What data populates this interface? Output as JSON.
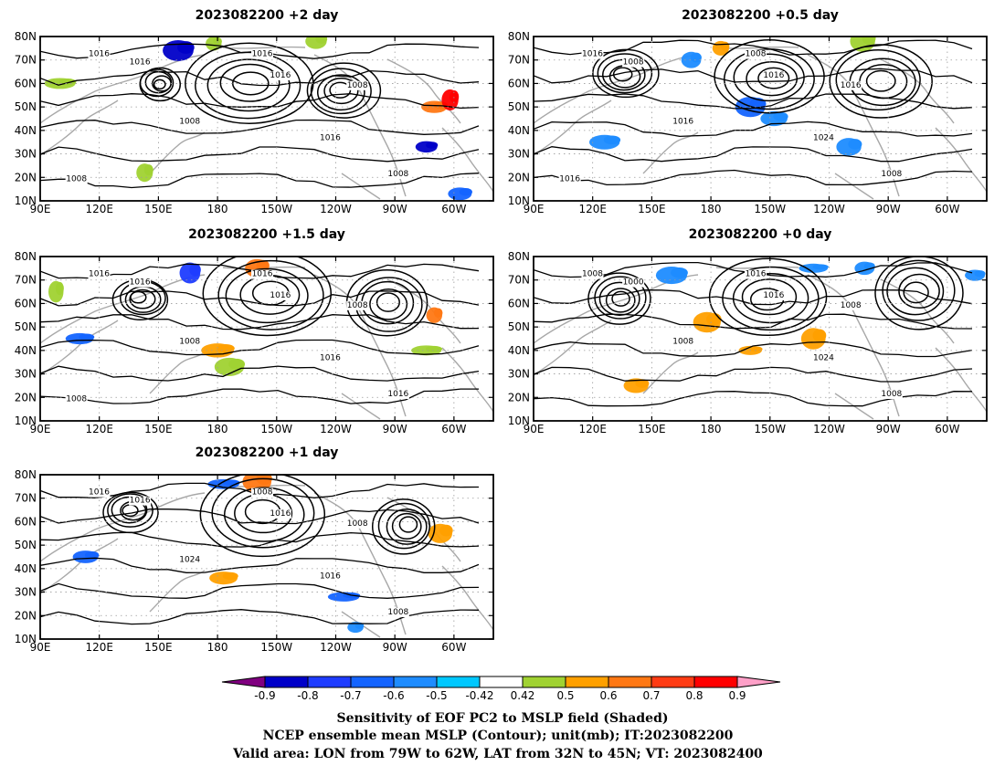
{
  "panels": [
    {
      "id": "p2",
      "title": "2023082200 +2 day",
      "contour_labels": [
        "1016",
        "1016",
        "1016",
        "1016",
        "1008",
        "1008",
        "1016",
        "1008",
        "1008"
      ],
      "shading": [
        {
          "lon": 160,
          "lat": 74,
          "value": -0.8
        },
        {
          "lon": 178,
          "lat": 77,
          "value": 0.5
        },
        {
          "lon": 100,
          "lat": 60,
          "value": 0.5
        },
        {
          "lon": 230,
          "lat": 78,
          "value": 0.5
        },
        {
          "lon": 290,
          "lat": 50,
          "value": 0.7
        },
        {
          "lon": 298,
          "lat": 53,
          "value": 0.9
        },
        {
          "lon": 286,
          "lat": 33,
          "value": -0.8
        },
        {
          "lon": 303,
          "lat": 13,
          "value": -0.6
        },
        {
          "lon": 143,
          "lat": 22,
          "value": 0.5
        }
      ]
    },
    {
      "id": "p05",
      "title": "2023082200 +0.5 day",
      "contour_labels": [
        "1016",
        "1008",
        "1008",
        "1016",
        "1016",
        "1016",
        "1024",
        "1008",
        "1016"
      ],
      "shading": [
        {
          "lon": 185,
          "lat": 75,
          "value": 0.6
        },
        {
          "lon": 170,
          "lat": 70,
          "value": -0.5
        },
        {
          "lon": 126,
          "lat": 35,
          "value": -0.5
        },
        {
          "lon": 212,
          "lat": 45,
          "value": -0.5
        },
        {
          "lon": 200,
          "lat": 50,
          "value": -0.6
        },
        {
          "lon": 257,
          "lat": 78,
          "value": 0.5
        },
        {
          "lon": 250,
          "lat": 33,
          "value": -0.5
        }
      ]
    },
    {
      "id": "p15",
      "title": "2023082200 +1.5 day",
      "contour_labels": [
        "1016",
        "1016",
        "1016",
        "1016",
        "1008",
        "1008",
        "1016",
        "1016",
        "1008"
      ],
      "shading": [
        {
          "lon": 166,
          "lat": 73,
          "value": -0.7
        },
        {
          "lon": 200,
          "lat": 75,
          "value": 0.7
        },
        {
          "lon": 186,
          "lat": 33,
          "value": 0.5
        },
        {
          "lon": 180,
          "lat": 40,
          "value": 0.6
        },
        {
          "lon": 290,
          "lat": 55,
          "value": 0.7
        },
        {
          "lon": 98,
          "lat": 65,
          "value": 0.5
        },
        {
          "lon": 110,
          "lat": 45,
          "value": -0.6
        },
        {
          "lon": 286,
          "lat": 40,
          "value": 0.5
        }
      ]
    },
    {
      "id": "p0",
      "title": "2023082200 +0 day",
      "contour_labels": [
        "1008",
        "1000",
        "1016",
        "1016",
        "1008",
        "1008",
        "1024",
        "1008"
      ],
      "shading": [
        {
          "lon": 142,
          "lat": 25,
          "value": 0.6
        },
        {
          "lon": 178,
          "lat": 52,
          "value": 0.6
        },
        {
          "lon": 232,
          "lat": 75,
          "value": -0.5
        },
        {
          "lon": 258,
          "lat": 75,
          "value": -0.5
        },
        {
          "lon": 314,
          "lat": 72,
          "value": -0.5
        },
        {
          "lon": 200,
          "lat": 40,
          "value": 0.6
        },
        {
          "lon": 160,
          "lat": 72,
          "value": -0.5
        },
        {
          "lon": 232,
          "lat": 45,
          "value": 0.6
        }
      ]
    },
    {
      "id": "p1",
      "title": "2023082200 +1 day",
      "contour_labels": [
        "1016",
        "1016",
        "1008",
        "1016",
        "1024",
        "1008",
        "1016",
        "1008"
      ],
      "shading": [
        {
          "lon": 200,
          "lat": 77,
          "value": 0.7
        },
        {
          "lon": 183,
          "lat": 76,
          "value": -0.6
        },
        {
          "lon": 183,
          "lat": 36,
          "value": 0.6
        },
        {
          "lon": 113,
          "lat": 45,
          "value": -0.6
        },
        {
          "lon": 293,
          "lat": 55,
          "value": 0.6
        },
        {
          "lon": 244,
          "lat": 28,
          "value": -0.6
        },
        {
          "lon": 250,
          "lat": 15,
          "value": -0.5
        }
      ]
    }
  ],
  "axes": {
    "lat_labels": [
      "80N",
      "70N",
      "60N",
      "50N",
      "40N",
      "30N",
      "20N",
      "10N"
    ],
    "lon_labels": [
      "90E",
      "120E",
      "150E",
      "180",
      "150W",
      "120W",
      "90W",
      "60W"
    ]
  },
  "colorbar": {
    "tick_labels": [
      "-0.9",
      "-0.8",
      "-0.7",
      "-0.6",
      "-0.5",
      "-0.42",
      "0.42",
      "0.5",
      "0.6",
      "0.7",
      "0.8",
      "0.9"
    ],
    "colors": [
      "#800080",
      "#0000c8",
      "#1e3cff",
      "#1464ff",
      "#1e8cff",
      "#00c8ff",
      "#ffffff",
      "#a0d232",
      "#ffa000",
      "#ff7814",
      "#ff3c14",
      "#ff0000",
      "#ffa0c8"
    ]
  },
  "caption": {
    "line1": "Sensitivity of EOF PC2 to MSLP field (Shaded)",
    "line2": "NCEP ensemble mean MSLP (Contour); unit(mb); IT:2023082200",
    "line3": "Valid area: LON from 79W to 62W, LAT from 32N to 45N; VT: 2023082400"
  }
}
